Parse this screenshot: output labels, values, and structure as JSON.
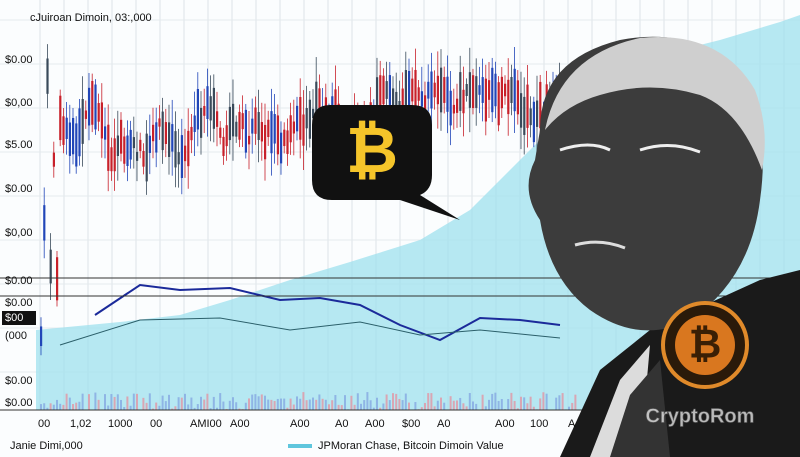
{
  "header": {
    "title": "cJuiroan Dimoin, 03:,000"
  },
  "y_labels": [
    "$0.00",
    "$0,00",
    "$5.00",
    "$0.00",
    "$0,00",
    "$0.00",
    "$0.00",
    "$00",
    "(000",
    "$0.00",
    "$0.00"
  ],
  "x_labels": [
    "00",
    "1,02",
    "1000",
    "00",
    "AMI00",
    "A00",
    "A00",
    "A0",
    "A00",
    "$00",
    "A0",
    "A00",
    "100",
    "A"
  ],
  "footer": {
    "caption": "Janie Dimi,000",
    "legend": "JPMoran Chase, Bitcoin Dimoin Value"
  },
  "speech_bubble": {
    "symbol": "₿"
  },
  "coin": {
    "symbol": "₿"
  },
  "watermark": "CryptoRom"
}
